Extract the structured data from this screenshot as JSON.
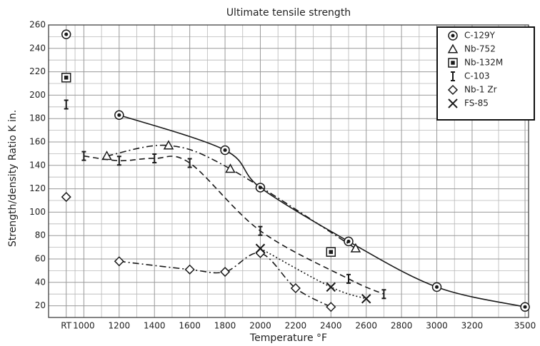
{
  "chart_data": {
    "type": "line",
    "title": "Ultimate tensile strength",
    "xlabel": "Temperature °F",
    "ylabel": "Strength/density Ratio K in.",
    "xlim": [
      800,
      3520
    ],
    "ylim": [
      10,
      260
    ],
    "xticks": [
      {
        "value": 900,
        "label": "RT"
      },
      1000,
      1200,
      1400,
      1600,
      1800,
      2000,
      2200,
      2400,
      2600,
      2800,
      3000,
      3200,
      3500
    ],
    "yticks": [
      20,
      40,
      60,
      80,
      100,
      120,
      140,
      160,
      180,
      200,
      220,
      240,
      260
    ],
    "grid": true,
    "legend": "top-right",
    "series": [
      {
        "name": "C-129Y",
        "color": "#1a1a1a",
        "marker": "circle-dot",
        "line": "solid",
        "x": [
          900,
          null,
          1200,
          1800,
          2000,
          2500,
          3000,
          3500
        ],
        "values": [
          252,
          null,
          183,
          153,
          121,
          75,
          36,
          19
        ]
      },
      {
        "name": "Nb-752",
        "color": "#1a1a1a",
        "marker": "triangle",
        "line": "dash-dot",
        "x": [
          1130,
          1480,
          1830,
          2540
        ],
        "values": [
          148,
          157,
          137,
          69
        ]
      },
      {
        "name": "Nb-132M",
        "color": "#1a1a1a",
        "marker": "square-dot",
        "line": "none",
        "x": [
          900,
          2400
        ],
        "values": [
          215,
          66
        ]
      },
      {
        "name": "C-103",
        "color": "#1a1a1a",
        "marker": "ibeam",
        "line": "dash",
        "x": [
          900,
          null,
          1000,
          1200,
          1400,
          1600,
          2000,
          2500,
          2700
        ],
        "values": [
          192,
          null,
          148,
          144,
          146,
          142,
          84,
          43,
          30
        ]
      },
      {
        "name": "Nb-1 Zr",
        "color": "#1a1a1a",
        "marker": "diamond",
        "line": "dash-dot",
        "x": [
          900,
          null,
          1200,
          1600,
          1800,
          2000,
          2200,
          2400
        ],
        "values": [
          113,
          null,
          58,
          51,
          49,
          65,
          35,
          19
        ]
      },
      {
        "name": "FS-85",
        "color": "#1a1a1a",
        "marker": "cross",
        "line": "dot",
        "x": [
          2000,
          2400,
          2600
        ],
        "values": [
          69,
          36,
          26
        ]
      }
    ]
  }
}
